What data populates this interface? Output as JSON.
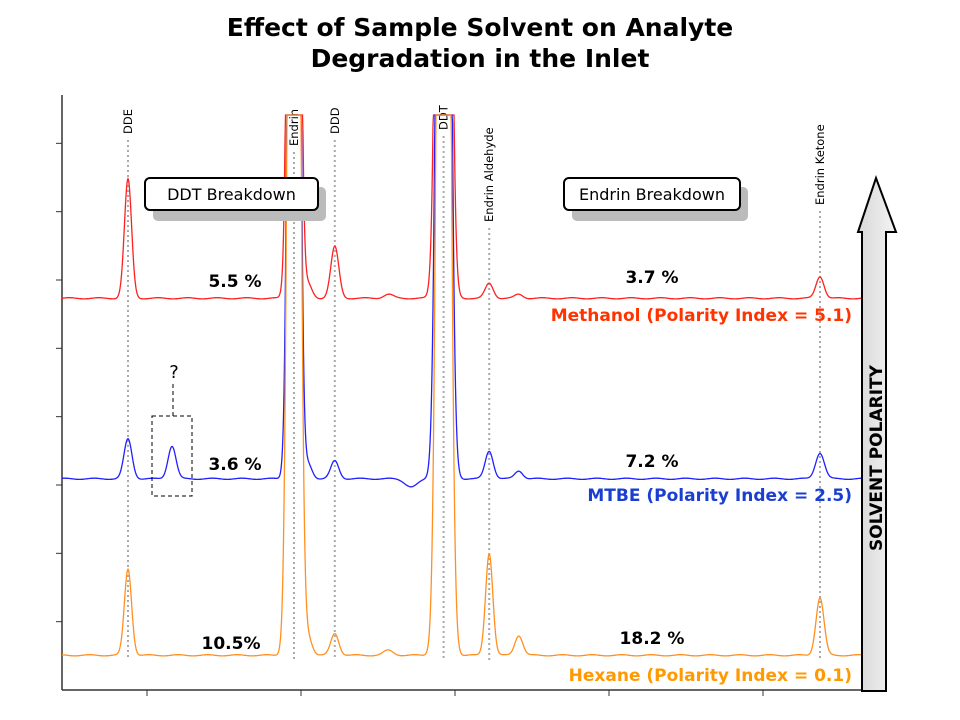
{
  "chart_data": {
    "type": "line",
    "title_lines": [
      "Effect of Sample Solvent on Analyte",
      "Degradation in the Inlet"
    ],
    "xlim": [
      0,
      100
    ],
    "ylim": [
      0,
      600
    ],
    "compounds": [
      {
        "name": "DDE",
        "rt": 8.25
      },
      {
        "name": "Endrin",
        "rt": 29.0
      },
      {
        "name": "DDD",
        "rt": 34.1
      },
      {
        "name": "DDT",
        "rt": 47.7
      },
      {
        "name": "Endrin Aldehyde",
        "rt": 53.4
      },
      {
        "name": "Endrin Ketone",
        "rt": 94.75
      }
    ],
    "boxes": [
      {
        "label": "DDT Breakdown"
      },
      {
        "label": "Endrin Breakdown"
      }
    ],
    "series": [
      {
        "name": "Methanol (Polarity Index = 5.1)",
        "color": "#ff2020",
        "label_color": "#ff3300",
        "baseline": 395,
        "ddt_breakdown": "5.5 %",
        "endrin_breakdown": "3.7 %",
        "peaks": [
          [
            8.25,
            120,
            0.45
          ],
          [
            29.0,
            2000,
            0.5
          ],
          [
            30.75,
            14,
            0.5
          ],
          [
            34.1,
            52,
            0.5
          ],
          [
            40.8,
            4,
            0.6
          ],
          [
            47.7,
            2000,
            0.6
          ],
          [
            53.4,
            15,
            0.5
          ],
          [
            57.1,
            4,
            0.5
          ],
          [
            94.75,
            22,
            0.5
          ]
        ]
      },
      {
        "name": "MTBE (Polarity Index = 2.5)",
        "color": "#2020ff",
        "label_color": "#1a3fd0",
        "baseline": 213,
        "ddt_breakdown": "3.6 %",
        "endrin_breakdown": "7.2 %",
        "peaks": [
          [
            8.25,
            40,
            0.5
          ],
          [
            13.75,
            33,
            0.5
          ],
          [
            29.0,
            2000,
            0.5
          ],
          [
            30.75,
            15,
            0.5
          ],
          [
            34.1,
            18,
            0.5
          ],
          [
            43.7,
            -8,
            0.8
          ],
          [
            47.7,
            2000,
            0.6
          ],
          [
            53.4,
            28,
            0.5
          ],
          [
            57.1,
            8,
            0.5
          ],
          [
            94.75,
            26,
            0.55
          ]
        ],
        "annotation": "?"
      },
      {
        "name": "Hexane (Polarity Index = 0.1)",
        "color": "#ff9020",
        "label_color": "#ff9900",
        "baseline": 35,
        "ddt_breakdown": "10.5%",
        "endrin_breakdown": "18.2 %",
        "peaks": [
          [
            8.25,
            87,
            0.45
          ],
          [
            29.0,
            2000,
            0.55
          ],
          [
            30.75,
            18,
            0.5
          ],
          [
            34.1,
            22,
            0.5
          ],
          [
            40.8,
            5,
            0.6
          ],
          [
            47.7,
            2000,
            0.6
          ],
          [
            53.4,
            103,
            0.45
          ],
          [
            57.1,
            20,
            0.5
          ],
          [
            94.75,
            58,
            0.5
          ]
        ]
      }
    ],
    "arrow_label": "SOLVENT POLARITY",
    "yticks": 8,
    "xticks": 5
  }
}
